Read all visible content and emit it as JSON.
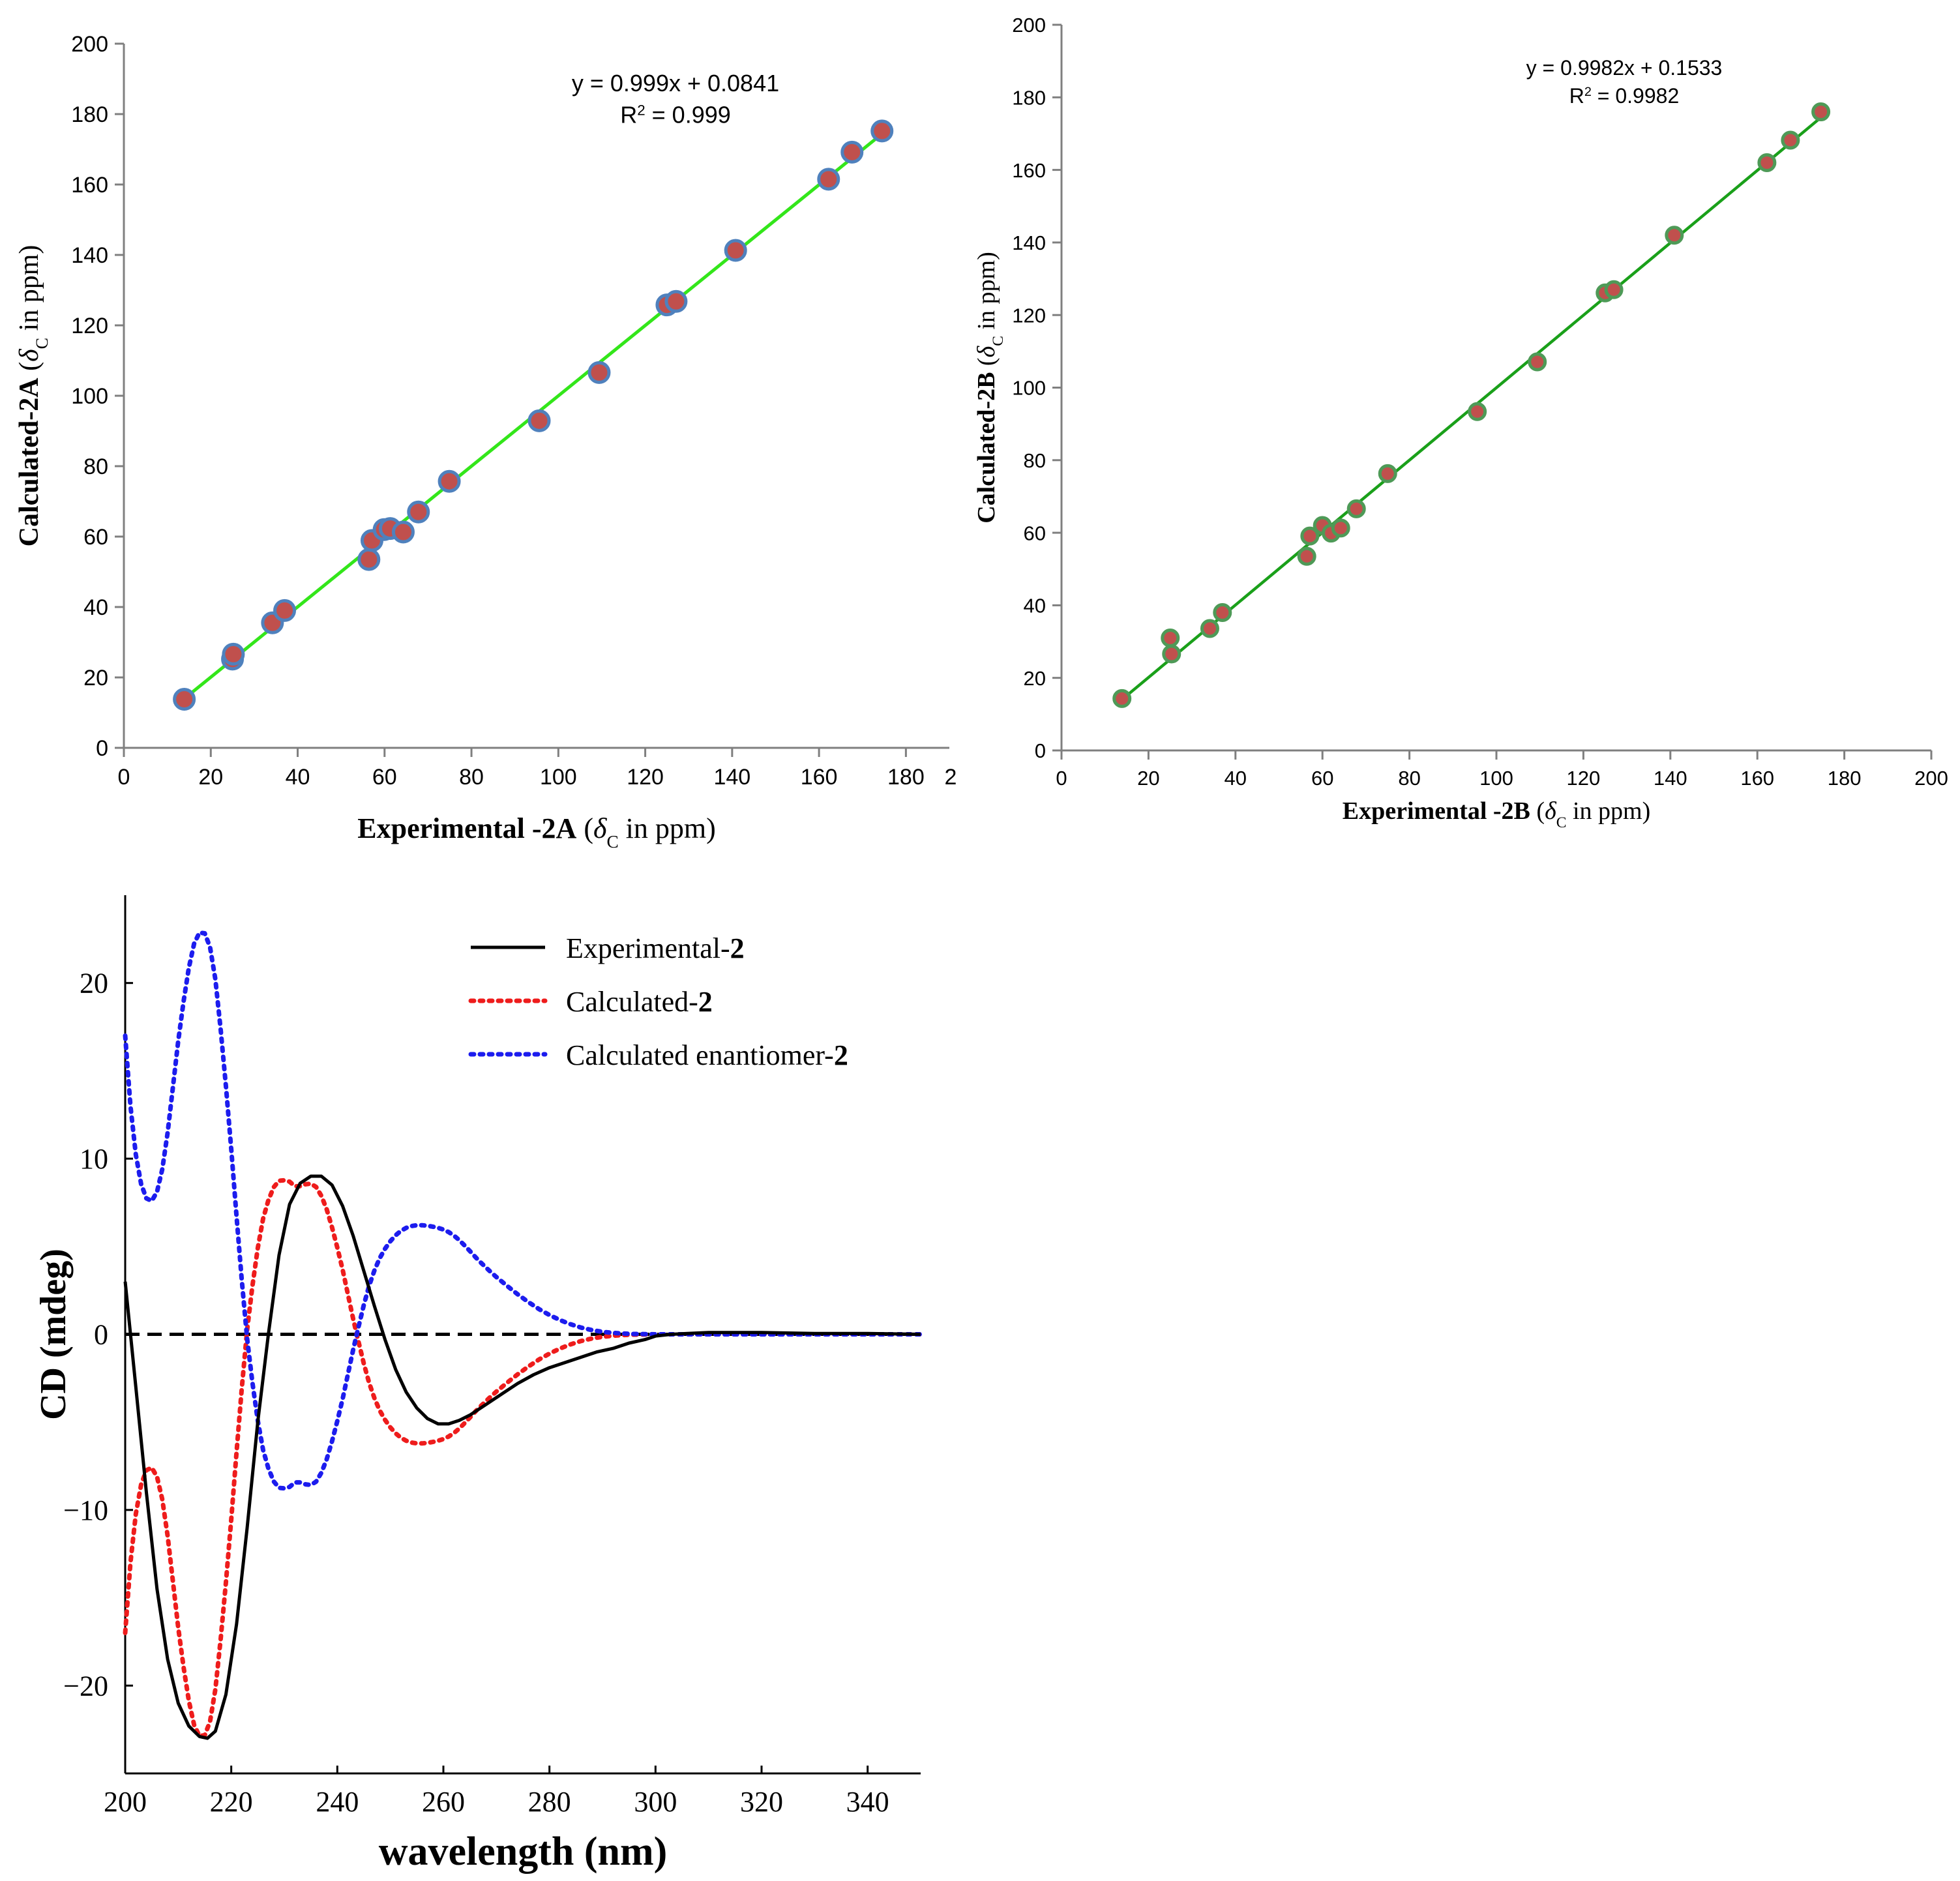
{
  "chart_data": [
    {
      "id": "2A",
      "type": "scatter",
      "equation": "y = 0.999x + 0.0841",
      "r2_label": "R",
      "r2_sup": "2",
      "r2_value": " = 0.999",
      "xlabel_main": "Experimental -2A",
      "ylabel_main": "Calculated-2A",
      "axis_unit_open": "(",
      "axis_unit_delta": "δ",
      "axis_unit_sub": "C",
      "axis_unit_rest": " in ppm)",
      "xlim": [
        0,
        190
      ],
      "ylim": [
        0,
        200
      ],
      "xticks": [
        0,
        20,
        40,
        60,
        80,
        100,
        120,
        140,
        160,
        180
      ],
      "xtick_partial": "2",
      "yticks": [
        0,
        20,
        40,
        60,
        80,
        100,
        120,
        140,
        160,
        180,
        200
      ],
      "trend": {
        "slope": 0.999,
        "intercept": 0.0841,
        "x_range": [
          13.9,
          174.5
        ]
      },
      "colors": {
        "marker_fill": "#c0504d",
        "marker_edge": "#4f81bd",
        "line": "#33e61a"
      },
      "x": [
        13.9,
        25.0,
        25.2,
        34.2,
        37.0,
        56.4,
        57.1,
        59.9,
        61.3,
        64.3,
        67.8,
        74.9,
        95.6,
        109.4,
        125.0,
        127.1,
        140.8,
        162.2,
        167.6,
        174.5
      ],
      "y": [
        13.8,
        25.2,
        26.6,
        35.5,
        39.0,
        53.5,
        58.9,
        62.0,
        62.3,
        61.3,
        67.0,
        75.7,
        92.9,
        106.6,
        125.8,
        126.8,
        141.3,
        161.5,
        169.2,
        175.2
      ]
    },
    {
      "id": "2B",
      "type": "scatter",
      "equation": "y = 0.9982x + 0.1533",
      "r2_label": "R",
      "r2_sup": "2",
      "r2_value": " = 0.9982",
      "xlabel_main": "Experimental -2B",
      "ylabel_main": "Calculated-2B",
      "axis_unit_open": "(",
      "axis_unit_delta": "δ",
      "axis_unit_sub": "C",
      "axis_unit_rest": " in ppm)",
      "xlim": [
        0,
        200
      ],
      "ylim": [
        0,
        200
      ],
      "xticks": [
        0,
        20,
        40,
        60,
        80,
        100,
        120,
        140,
        160,
        180,
        200
      ],
      "yticks": [
        0,
        20,
        40,
        60,
        80,
        100,
        120,
        140,
        160,
        180,
        200
      ],
      "trend": {
        "slope": 0.9982,
        "intercept": 0.1533,
        "x_range": [
          13.9,
          174.5
        ]
      },
      "colors": {
        "marker_fill": "#c0504d",
        "marker_edge": "#4e9a57",
        "line": "#1aa01a"
      },
      "x": [
        13.9,
        25.0,
        25.3,
        34.1,
        37.0,
        56.4,
        57.1,
        60.0,
        62.0,
        64.2,
        67.8,
        75.0,
        95.6,
        109.4,
        125.0,
        127.0,
        140.9,
        162.2,
        167.6,
        174.6
      ],
      "y": [
        14.3,
        31.0,
        26.6,
        33.6,
        38.0,
        53.5,
        59.1,
        62.0,
        59.9,
        61.3,
        66.6,
        76.3,
        93.4,
        107.1,
        126.1,
        127.0,
        142.0,
        162.0,
        168.2,
        176.0
      ]
    },
    {
      "id": "CD",
      "type": "line",
      "xlabel": "wavelength (nm)",
      "ylabel": "CD (mdeg)",
      "xlim": [
        200,
        350
      ],
      "ylim": [
        -25,
        25
      ],
      "xticks": [
        200,
        220,
        240,
        260,
        280,
        300,
        320,
        340
      ],
      "yticks": [
        20,
        10,
        0,
        -10,
        -20
      ],
      "ytick_labels": [
        "20",
        "10",
        "0",
        "−10",
        "−20"
      ],
      "zero_line": true,
      "legend_position": "top-right",
      "series": [
        {
          "name_text": "Experimental-",
          "name_bold": "2",
          "color": "#000000",
          "style": "solid",
          "x": [
            200,
            202,
            204,
            206,
            208,
            210,
            212,
            214,
            215.5,
            217,
            219,
            221,
            223,
            225,
            227,
            229,
            231,
            233,
            235,
            237,
            239,
            241,
            243,
            245,
            247,
            249,
            251,
            253,
            255,
            257,
            259,
            261,
            263,
            265,
            268,
            271,
            274,
            277,
            280,
            283,
            286,
            289,
            292,
            295,
            298,
            300,
            303,
            306,
            310,
            315,
            320,
            330,
            340,
            350
          ],
          "y": [
            3.0,
            -3.0,
            -9.0,
            -14.5,
            -18.5,
            -21.0,
            -22.3,
            -22.9,
            -23.0,
            -22.6,
            -20.5,
            -16.5,
            -11.0,
            -5.0,
            0.0,
            4.5,
            7.4,
            8.6,
            9.0,
            9.0,
            8.5,
            7.3,
            5.6,
            3.6,
            1.6,
            -0.3,
            -2.0,
            -3.3,
            -4.2,
            -4.8,
            -5.1,
            -5.1,
            -4.9,
            -4.6,
            -4.0,
            -3.4,
            -2.8,
            -2.3,
            -1.9,
            -1.6,
            -1.3,
            -1.0,
            -0.8,
            -0.5,
            -0.3,
            -0.1,
            0.0,
            0.05,
            0.1,
            0.1,
            0.1,
            0.05,
            0.05,
            0.0
          ]
        },
        {
          "name_text": "Calculated-",
          "name_bold": "2",
          "color": "#ee1c1c",
          "style": "dotted",
          "x": [
            200,
            201,
            202,
            203,
            204,
            205,
            206,
            207,
            208,
            209,
            210,
            211,
            212,
            213,
            214,
            215,
            216,
            217,
            218,
            219,
            220,
            221,
            222,
            223,
            224,
            225,
            226,
            227,
            228,
            229,
            230,
            231,
            232,
            233,
            234,
            235,
            236,
            237,
            238,
            239,
            240,
            241,
            242,
            243,
            244,
            245,
            246,
            247,
            248,
            249,
            250,
            251,
            252,
            253,
            254,
            255,
            256,
            257,
            258,
            259,
            260,
            261,
            262,
            263,
            264,
            265,
            266,
            267,
            268,
            269,
            270,
            272,
            274,
            276,
            278,
            280,
            282,
            284,
            286,
            288,
            290,
            292,
            294,
            296,
            298,
            300,
            305,
            310,
            320,
            330,
            340,
            350
          ],
          "y": [
            -17.0,
            -12.99,
            -10.23,
            -8.56,
            -7.74,
            -7.59,
            -8.11,
            -9.4,
            -11.48,
            -14.07,
            -16.69,
            -18.94,
            -20.86,
            -22.24,
            -22.87,
            -22.83,
            -22.05,
            -20.21,
            -17.37,
            -14.12,
            -10.52,
            -6.7,
            -3.04,
            0.27,
            2.77,
            4.9,
            6.58,
            7.63,
            8.37,
            8.74,
            8.77,
            8.69,
            8.43,
            8.43,
            8.54,
            8.58,
            8.39,
            7.88,
            7.11,
            6.09,
            4.94,
            3.68,
            2.27,
            0.87,
            -0.43,
            -1.67,
            -2.76,
            -3.64,
            -4.34,
            -4.87,
            -5.3,
            -5.64,
            -5.89,
            -6.06,
            -6.16,
            -6.21,
            -6.21,
            -6.18,
            -6.13,
            -6.06,
            -5.96,
            -5.82,
            -5.62,
            -5.36,
            -5.06,
            -4.74,
            -4.41,
            -4.1,
            -3.81,
            -3.53,
            -3.26,
            -2.76,
            -2.28,
            -1.84,
            -1.44,
            -1.1,
            -0.81,
            -0.57,
            -0.38,
            -0.24,
            -0.14,
            -0.08,
            -0.04,
            -0.02,
            -0.01,
            0.0,
            0.0,
            0.0,
            0.0,
            0.0,
            0.0,
            0.0
          ]
        },
        {
          "name_text": "Calculated enantiomer-",
          "name_bold": "2",
          "color": "#1c1cee",
          "style": "dotted",
          "x": [
            200,
            201,
            202,
            203,
            204,
            205,
            206,
            207,
            208,
            209,
            210,
            211,
            212,
            213,
            214,
            215,
            216,
            217,
            218,
            219,
            220,
            221,
            222,
            223,
            224,
            225,
            226,
            227,
            228,
            229,
            230,
            231,
            232,
            233,
            234,
            235,
            236,
            237,
            238,
            239,
            240,
            241,
            242,
            243,
            244,
            245,
            246,
            247,
            248,
            249,
            250,
            251,
            252,
            253,
            254,
            255,
            256,
            257,
            258,
            259,
            260,
            261,
            262,
            263,
            264,
            265,
            266,
            267,
            268,
            269,
            270,
            272,
            274,
            276,
            278,
            280,
            282,
            284,
            286,
            288,
            290,
            292,
            294,
            296,
            298,
            300,
            305,
            310,
            320,
            330,
            340,
            350
          ],
          "y": [
            17.0,
            12.99,
            10.23,
            8.56,
            7.74,
            7.59,
            8.11,
            9.4,
            11.48,
            14.07,
            16.69,
            18.94,
            20.86,
            22.24,
            22.87,
            22.83,
            22.05,
            20.21,
            17.37,
            14.12,
            10.52,
            6.7,
            3.04,
            -0.27,
            -2.77,
            -4.9,
            -6.58,
            -7.63,
            -8.37,
            -8.74,
            -8.77,
            -8.69,
            -8.43,
            -8.43,
            -8.54,
            -8.58,
            -8.39,
            -7.88,
            -7.11,
            -6.09,
            -4.94,
            -3.68,
            -2.27,
            -0.87,
            0.43,
            1.67,
            2.76,
            3.64,
            4.34,
            4.87,
            5.3,
            5.64,
            5.89,
            6.06,
            6.16,
            6.21,
            6.21,
            6.18,
            6.13,
            6.06,
            5.96,
            5.82,
            5.62,
            5.36,
            5.06,
            4.74,
            4.41,
            4.1,
            3.81,
            3.53,
            3.26,
            2.76,
            2.28,
            1.84,
            1.44,
            1.1,
            0.81,
            0.57,
            0.38,
            0.24,
            0.14,
            0.08,
            0.04,
            0.02,
            0.01,
            0.0,
            0.0,
            0.0,
            0.0,
            0.0,
            0.0,
            0.0
          ]
        }
      ]
    }
  ]
}
